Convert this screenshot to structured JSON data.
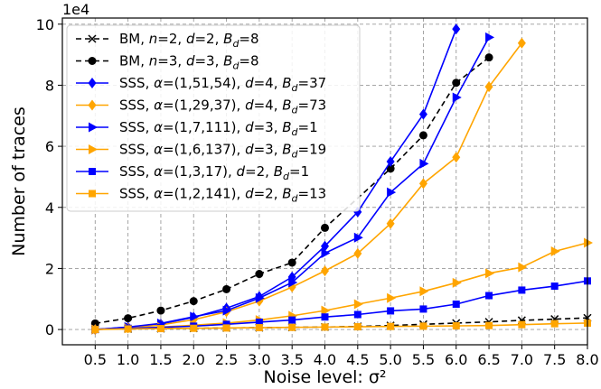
{
  "chart_data": {
    "type": "line",
    "xlabel": "Noise level: σ²",
    "ylabel": "Number of traces",
    "y_multiplier_label": "1e4",
    "xlim": [
      0.0,
      8.0
    ],
    "ylim": [
      -5000,
      102000
    ],
    "x_ticks": [
      0.5,
      1.0,
      1.5,
      2.0,
      2.5,
      3.0,
      3.5,
      4.0,
      4.5,
      5.0,
      5.5,
      6.0,
      6.5,
      7.0,
      7.5,
      8.0
    ],
    "x_tick_labels": [
      "0.5",
      "1.0",
      "1.5",
      "2.0",
      "2.5",
      "3.0",
      "3.5",
      "4.0",
      "4.5",
      "5.0",
      "5.5",
      "6.0",
      "6.5",
      "7.0",
      "7.5",
      "8.0"
    ],
    "y_ticks": [
      0,
      20000,
      40000,
      60000,
      80000,
      100000
    ],
    "y_tick_labels": [
      "0",
      "2",
      "4",
      "6",
      "8",
      "10"
    ],
    "grid": true,
    "legend_position": "top-left",
    "series": [
      {
        "label_main": "BM, ",
        "label_tail": "",
        "color": "#000000",
        "dashed": true,
        "marker": "x",
        "x": [
          0.5,
          1.0,
          1.5,
          2.0,
          2.5,
          3.0,
          3.5,
          4.0,
          4.5,
          5.0,
          5.5,
          6.0,
          6.5,
          7.0,
          7.5,
          8.0
        ],
        "y": [
          100,
          200,
          300,
          400,
          500,
          600,
          700,
          800,
          1000,
          1300,
          1700,
          2100,
          2500,
          3000,
          3400,
          3800
        ],
        "legend": {
          "n": "2",
          "d": "2",
          "Bd": "8"
        }
      },
      {
        "label_main": "BM, ",
        "label_tail": "",
        "color": "#000000",
        "dashed": true,
        "marker": "circle",
        "x": [
          0.5,
          1.0,
          1.5,
          2.0,
          2.5,
          3.0,
          3.5,
          4.0,
          5.0,
          5.5,
          6.0,
          6.5
        ],
        "y": [
          2000,
          3700,
          6200,
          9300,
          13200,
          18200,
          21900,
          33300,
          52700,
          63600,
          80800,
          89100
        ],
        "legend": {
          "n": "3",
          "d": "3",
          "Bd": "8"
        }
      },
      {
        "color": "#0000ff",
        "dashed": false,
        "marker": "diamond",
        "x": [
          0.5,
          1.0,
          1.5,
          2.0,
          2.5,
          3.0,
          3.5,
          4.0,
          4.5,
          5.0,
          5.5,
          6.0
        ],
        "y": [
          0,
          800,
          1800,
          4000,
          7000,
          10800,
          17200,
          27300,
          38500,
          55000,
          70500,
          98400
        ],
        "legend": {
          "alpha": "(1,51,54)",
          "d": "4",
          "Bd": "37"
        }
      },
      {
        "color": "#ffa500",
        "dashed": false,
        "marker": "diamond",
        "x": [
          0.5,
          1.0,
          1.5,
          2.0,
          2.5,
          3.0,
          3.5,
          4.0,
          4.5,
          5.0,
          5.5,
          6.0,
          6.5,
          7.0
        ],
        "y": [
          0,
          500,
          1500,
          3200,
          5800,
          9300,
          13900,
          19200,
          24900,
          34700,
          47800,
          56400,
          79500,
          93800
        ],
        "legend": {
          "alpha": "(1,29,37)",
          "d": "4",
          "Bd": "73"
        }
      },
      {
        "color": "#0000ff",
        "dashed": false,
        "marker": "triangle-right",
        "x": [
          0.5,
          1.0,
          1.5,
          2.0,
          2.5,
          3.0,
          3.5,
          4.0,
          4.5,
          5.0,
          5.5,
          6.0,
          6.5
        ],
        "y": [
          0,
          800,
          2000,
          4200,
          6200,
          10300,
          15400,
          25000,
          30100,
          44900,
          54300,
          76000,
          95700
        ],
        "legend": {
          "alpha": "(1,7,111)",
          "d": "3",
          "Bd": "1"
        }
      },
      {
        "color": "#ffa500",
        "dashed": false,
        "marker": "triangle-right",
        "x": [
          0.5,
          1.0,
          1.5,
          2.0,
          2.5,
          3.0,
          3.5,
          4.0,
          4.5,
          5.0,
          5.5,
          6.0,
          6.5,
          7.0,
          7.5,
          8.0
        ],
        "y": [
          0,
          400,
          800,
          1400,
          2100,
          3100,
          4500,
          6200,
          8300,
          10300,
          12500,
          15300,
          18400,
          20400,
          25600,
          28400
        ],
        "legend": {
          "alpha": "(1,6,137)",
          "d": "3",
          "Bd": "19"
        }
      },
      {
        "color": "#0000ff",
        "dashed": false,
        "marker": "square",
        "x": [
          0.5,
          1.0,
          1.5,
          2.0,
          2.5,
          3.0,
          3.5,
          4.0,
          4.5,
          5.0,
          5.5,
          6.0,
          6.5,
          7.0,
          7.5,
          8.0
        ],
        "y": [
          0,
          400,
          700,
          1100,
          1700,
          2400,
          3100,
          4100,
          4900,
          6100,
          6700,
          8300,
          11100,
          12900,
          14200,
          15900
        ],
        "legend": {
          "alpha": "(1,3,17)",
          "d": "2",
          "Bd": "1"
        }
      },
      {
        "color": "#ffa500",
        "dashed": false,
        "marker": "square",
        "x": [
          0.5,
          1.0,
          1.5,
          2.0,
          2.5,
          3.0,
          3.5,
          4.0,
          4.5,
          5.0,
          5.5,
          6.0,
          6.5,
          7.0,
          7.5,
          8.0
        ],
        "y": [
          0,
          200,
          300,
          400,
          500,
          600,
          700,
          800,
          900,
          1000,
          1100,
          1200,
          1300,
          1600,
          1900,
          2100
        ],
        "legend": {
          "alpha": "(1,2,141)",
          "d": "2",
          "Bd": "13"
        }
      }
    ]
  }
}
